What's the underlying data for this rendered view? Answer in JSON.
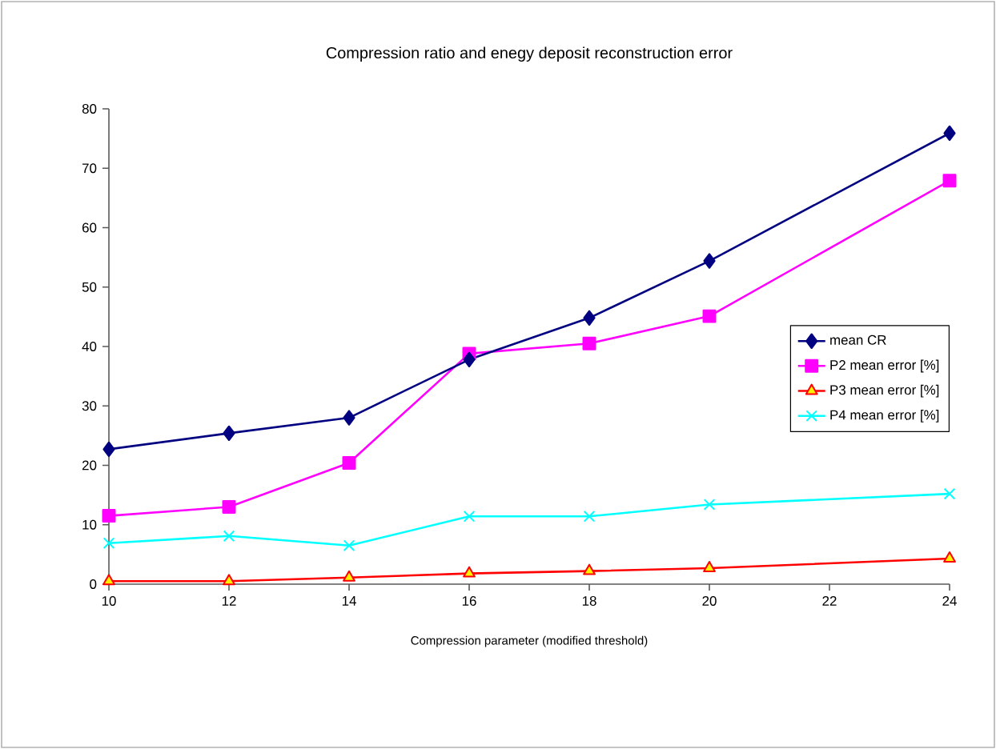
{
  "chart_data": {
    "type": "line",
    "title": "Compression ratio and enegy deposit reconstruction error",
    "xlabel": "Compression parameter (modified threshold)",
    "x": [
      10,
      12,
      14,
      16,
      18,
      20,
      24
    ],
    "series": [
      {
        "name": "mean CR",
        "color": "#000080",
        "marker": "diamond",
        "values": [
          22.7,
          25.4,
          28.0,
          37.8,
          44.8,
          54.4,
          75.9
        ]
      },
      {
        "name": "P2 mean error [%]",
        "color": "#ff00ff",
        "marker": "square",
        "values": [
          11.5,
          13.0,
          20.4,
          38.8,
          40.5,
          45.1,
          67.9
        ]
      },
      {
        "name": "P3 mean error [%]",
        "color": "#ff0000",
        "marker": "triangle",
        "values": [
          0.5,
          0.5,
          1.1,
          1.8,
          2.2,
          2.7,
          4.3
        ]
      },
      {
        "name": "P4 mean error [%]",
        "color": "#00ffff",
        "marker": "cross",
        "values": [
          6.9,
          8.1,
          6.5,
          11.4,
          11.4,
          13.4,
          15.2
        ]
      }
    ],
    "xlim": [
      10,
      24
    ],
    "xticks": [
      10,
      12,
      14,
      16,
      18,
      20,
      22,
      24
    ],
    "ylim": [
      0,
      80
    ],
    "yticks": [
      0,
      10,
      20,
      30,
      40,
      50,
      60,
      70,
      80
    ],
    "grid": false,
    "legend": "right",
    "line_style": "solid"
  }
}
